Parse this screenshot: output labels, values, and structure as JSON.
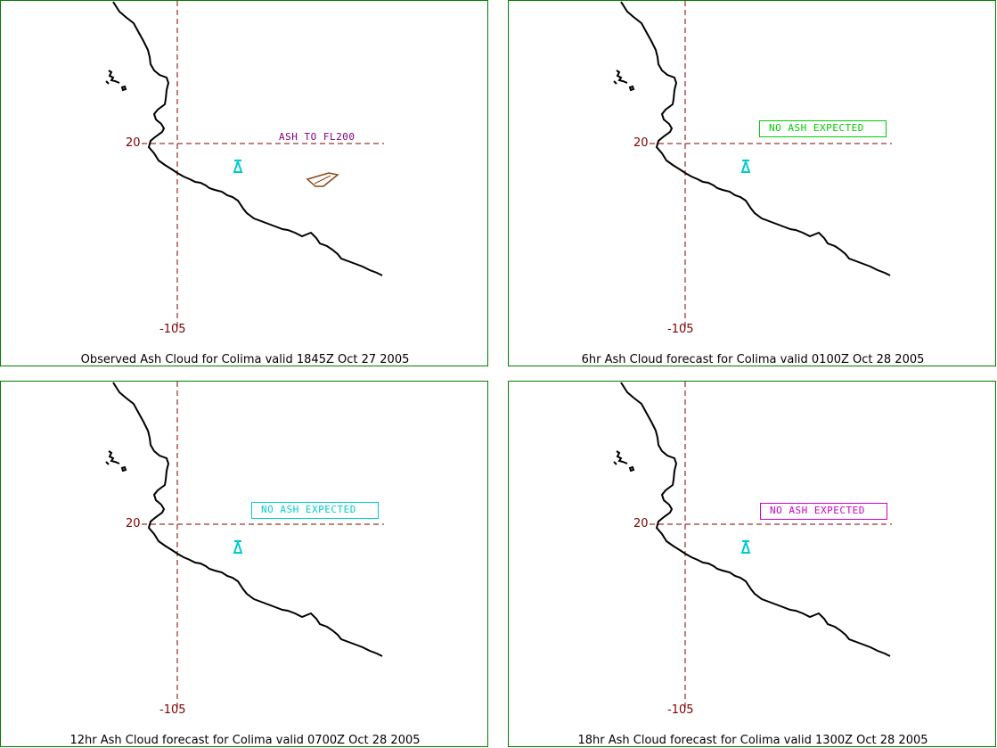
{
  "panels": [
    {
      "caption": "Observed Ash Cloud for Colima valid 1845Z Oct 27 2005",
      "lat_label": "20",
      "lon_label": "-105",
      "ash_text": "ASH TO FL200",
      "ash_color": "#800080",
      "show_cloud": true,
      "cloud_color": "#8b4513"
    },
    {
      "caption": "6hr Ash Cloud forecast for Colima valid 0100Z Oct 28 2005",
      "lat_label": "20",
      "lon_label": "-105",
      "ash_text": "NO ASH EXPECTED",
      "ash_color": "#00cc00",
      "show_cloud": false
    },
    {
      "caption": "12hr Ash Cloud forecast for Colima valid 0700Z Oct 28 2005",
      "lat_label": "20",
      "lon_label": "-105",
      "ash_text": "NO ASH EXPECTED",
      "ash_color": "#00cccc",
      "show_cloud": false
    },
    {
      "caption": "18hr Ash Cloud forecast for Colima valid 1300Z Oct 28 2005",
      "lat_label": "20",
      "lon_label": "-105",
      "ash_text": "NO ASH EXPECTED",
      "ash_color": "#cc00cc",
      "show_cloud": false
    }
  ],
  "colors": {
    "border": "#008000",
    "coastline": "#000000",
    "gridline": "#800000",
    "volcano": "#00cccc"
  },
  "icons": {
    "volcano": "volcano-icon"
  }
}
